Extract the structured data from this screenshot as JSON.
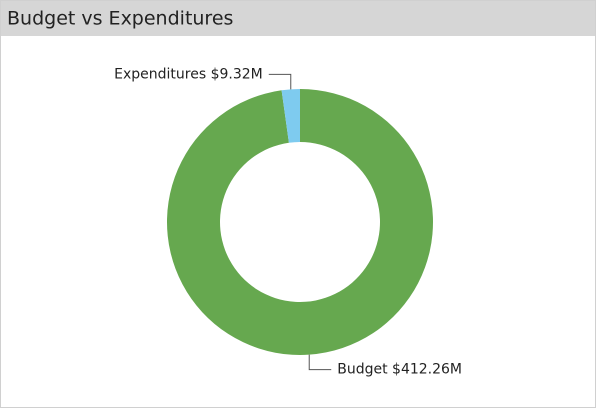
{
  "chart_data": {
    "type": "donut",
    "title": "Budget vs Expenditures",
    "categories": [
      "Budget",
      "Expenditures"
    ],
    "values": [
      412.26,
      9.32
    ],
    "value_labels": [
      "$412.26M",
      "$9.32M"
    ],
    "colors": [
      "#66a84f",
      "#7ecbef"
    ]
  }
}
